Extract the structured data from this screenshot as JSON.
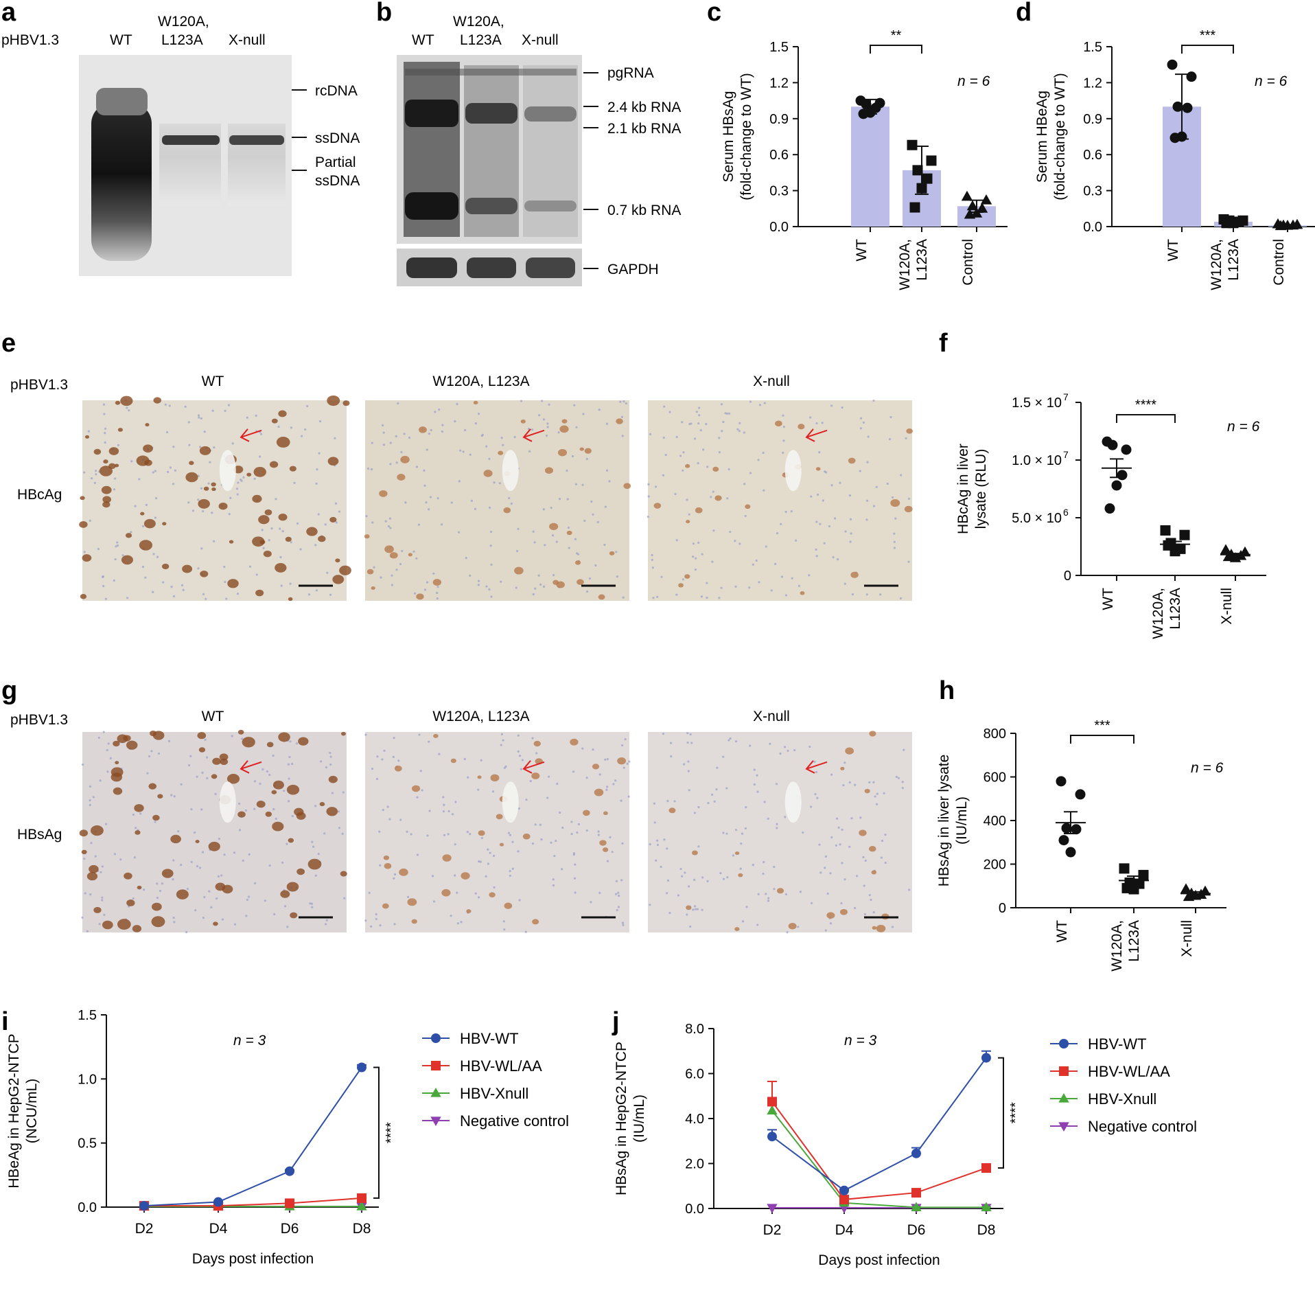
{
  "figure": {
    "panel_letters": [
      "a",
      "b",
      "c",
      "d",
      "e",
      "f",
      "g",
      "h",
      "i",
      "j"
    ]
  },
  "panel_a": {
    "plasmid": "pHBV1.3",
    "lanes": [
      "WT",
      "W120A,",
      "L123A",
      "X-null"
    ],
    "bands": [
      "rcDNA",
      "ssDNA",
      "Partial",
      "ssDNA"
    ]
  },
  "panel_b": {
    "lanes": [
      "WT",
      "W120A,",
      "L123A",
      "X-null"
    ],
    "bands": [
      "pgRNA",
      "2.4 kb RNA",
      "2.1 kb RNA",
      "0.7 kb RNA"
    ],
    "loading": "GAPDH"
  },
  "panel_e": {
    "plasmid": "pHBV1.3",
    "stain": "HBcAg",
    "columns": [
      "WT",
      "W120A, L123A",
      "X-null"
    ]
  },
  "panel_g": {
    "plasmid": "pHBV1.3",
    "stain": "HBsAg",
    "columns": [
      "WT",
      "W120A, L123A",
      "X-null"
    ]
  },
  "chart_data": [
    {
      "panel": "c",
      "type": "bar",
      "ylabel_lines": [
        "Serum HBsAg",
        "(fold-change to WT)"
      ],
      "ylim": [
        0,
        1.5
      ],
      "yticks": [
        "0.0",
        "0.3",
        "0.6",
        "0.9",
        "1.2",
        "1.5"
      ],
      "categories": [
        [
          "WT"
        ],
        [
          "W120A,",
          "L123A"
        ],
        [
          "Control"
        ]
      ],
      "values": [
        1.0,
        0.47,
        0.17
      ],
      "sd": [
        0.06,
        0.2,
        0.05
      ],
      "points": [
        [
          1.05,
          1.03,
          1.02,
          0.99,
          0.95,
          0.94
        ],
        [
          0.68,
          0.55,
          0.47,
          0.4,
          0.32,
          0.16
        ],
        [
          0.25,
          0.22,
          0.17,
          0.15,
          0.11,
          0.1
        ]
      ],
      "markers": [
        "circle",
        "square",
        "triangle"
      ],
      "significance": "**",
      "sig_between": [
        0,
        1
      ],
      "n_label": "n = 6"
    },
    {
      "panel": "d",
      "type": "bar",
      "ylabel_lines": [
        "Serum HBeAg",
        "(fold-change to WT)"
      ],
      "ylim": [
        0,
        1.5
      ],
      "yticks": [
        "0.0",
        "0.3",
        "0.6",
        "0.9",
        "1.2",
        "1.5"
      ],
      "categories": [
        [
          "WT"
        ],
        [
          "W120A,",
          "L123A"
        ],
        [
          "Control"
        ]
      ],
      "values": [
        1.0,
        0.04,
        0.01
      ],
      "sd": [
        0.27,
        0.02,
        0.005
      ],
      "points": [
        [
          1.35,
          1.25,
          1.0,
          0.99,
          0.75,
          0.74
        ],
        [
          0.06,
          0.05,
          0.05,
          0.04,
          0.03,
          0.03
        ],
        [
          0.02,
          0.015,
          0.01,
          0.01,
          0.008,
          0.005
        ]
      ],
      "markers": [
        "circle",
        "square",
        "triangle"
      ],
      "significance": "***",
      "sig_between": [
        0,
        1
      ],
      "n_label": "n = 6"
    },
    {
      "panel": "f",
      "type": "scatter",
      "ylabel_lines": [
        "HBcAg in liver",
        "lysate (RLU)"
      ],
      "ylim": [
        0,
        15000000
      ],
      "yticks": [
        "0",
        "5.0 × 10",
        "1.0 × 10",
        "1.5 × 10"
      ],
      "ytick_exponents": [
        "",
        "6",
        "7",
        "7"
      ],
      "categories": [
        [
          "WT"
        ],
        [
          "W120A,",
          "L123A"
        ],
        [
          "X-null"
        ]
      ],
      "means": [
        9300000,
        2700000,
        1800000
      ],
      "sem": [
        800000,
        250000,
        100000
      ],
      "points": [
        [
          11600000,
          10900000,
          11300000,
          8700000,
          7800000,
          5800000
        ],
        [
          3900000,
          3500000,
          2800000,
          2300000,
          2100000,
          2600000
        ],
        [
          2200000,
          2000000,
          1800000,
          1700000,
          1500000,
          1600000
        ]
      ],
      "markers": [
        "circle",
        "square",
        "triangle"
      ],
      "significance": "****",
      "sig_between": [
        0,
        1
      ],
      "n_label": "n = 6"
    },
    {
      "panel": "h",
      "type": "scatter",
      "ylabel_lines": [
        "HBsAg in liver lysate",
        "(IU/mL)"
      ],
      "ylim": [
        0,
        800
      ],
      "yticks": [
        "0",
        "200",
        "400",
        "600",
        "800"
      ],
      "categories": [
        [
          "WT"
        ],
        [
          "W120A,",
          "L123A"
        ],
        [
          "X-null"
        ]
      ],
      "means": [
        390,
        125,
        65
      ],
      "sem": [
        50,
        20,
        8
      ],
      "points": [
        [
          580,
          520,
          365,
          360,
          255,
          310
        ],
        [
          180,
          150,
          115,
          110,
          85,
          90
        ],
        [
          85,
          75,
          65,
          60,
          55,
          50
        ]
      ],
      "markers": [
        "circle",
        "square",
        "triangle"
      ],
      "significance": "***",
      "sig_between": [
        0,
        1
      ],
      "n_label": "n = 6"
    },
    {
      "panel": "i",
      "type": "line",
      "xlabel": "Days post infection",
      "ylabel_lines": [
        "HBeAg in HepG2-NTCP",
        "(NCU/mL)"
      ],
      "x": [
        "D2",
        "D4",
        "D6",
        "D8"
      ],
      "ylim": [
        0,
        1.5
      ],
      "yticks": [
        "0.0",
        "0.5",
        "1.0",
        "1.5"
      ],
      "series": [
        {
          "name": "HBV-WT",
          "color": "#2e4fa8",
          "marker": "circle",
          "values": [
            0.01,
            0.04,
            0.28,
            1.09
          ],
          "err": [
            0.005,
            0.005,
            0.01,
            0.02
          ]
        },
        {
          "name": "HBV-WL/AA",
          "color": "#e0312b",
          "marker": "square",
          "values": [
            0.01,
            0.01,
            0.03,
            0.07
          ],
          "err": [
            0.002,
            0.002,
            0.005,
            0.005
          ]
        },
        {
          "name": "HBV-Xnull",
          "color": "#49a83a",
          "marker": "triangle",
          "values": [
            0.005,
            0.005,
            0.005,
            0.005
          ],
          "err": [
            0,
            0,
            0,
            0
          ]
        },
        {
          "name": "Negative control",
          "color": "#8e3fb0",
          "marker": "triangle-down",
          "values": [
            0.005,
            0.005,
            0.005,
            0.005
          ],
          "err": [
            0,
            0,
            0,
            0
          ]
        }
      ],
      "significance": "****",
      "n_label": "n = 3"
    },
    {
      "panel": "j",
      "type": "line",
      "xlabel": "Days post infection",
      "ylabel_lines": [
        "HBsAg in HepG2-NTCP",
        "(IU/mL)"
      ],
      "x": [
        "D2",
        "D4",
        "D6",
        "D8"
      ],
      "ylim": [
        0,
        8
      ],
      "yticks": [
        "0.0",
        "2.0",
        "4.0",
        "6.0",
        "8.0"
      ],
      "series": [
        {
          "name": "HBV-WT",
          "color": "#2e4fa8",
          "marker": "circle",
          "values": [
            3.2,
            0.8,
            2.45,
            6.7
          ],
          "err": [
            0.3,
            0.05,
            0.25,
            0.3
          ]
        },
        {
          "name": "HBV-WL/AA",
          "color": "#e0312b",
          "marker": "square",
          "values": [
            4.75,
            0.4,
            0.7,
            1.8
          ],
          "err": [
            0.9,
            0.05,
            0.05,
            0.1
          ]
        },
        {
          "name": "HBV-Xnull",
          "color": "#49a83a",
          "marker": "triangle",
          "values": [
            4.35,
            0.25,
            0.05,
            0.05
          ],
          "err": [
            0.5,
            0.05,
            0.02,
            0.02
          ]
        },
        {
          "name": "Negative control",
          "color": "#8e3fb0",
          "marker": "triangle-down",
          "values": [
            0.03,
            0.03,
            0.03,
            0.03
          ],
          "err": [
            0,
            0,
            0,
            0
          ]
        }
      ],
      "significance": "****",
      "n_label": "n = 3"
    }
  ]
}
